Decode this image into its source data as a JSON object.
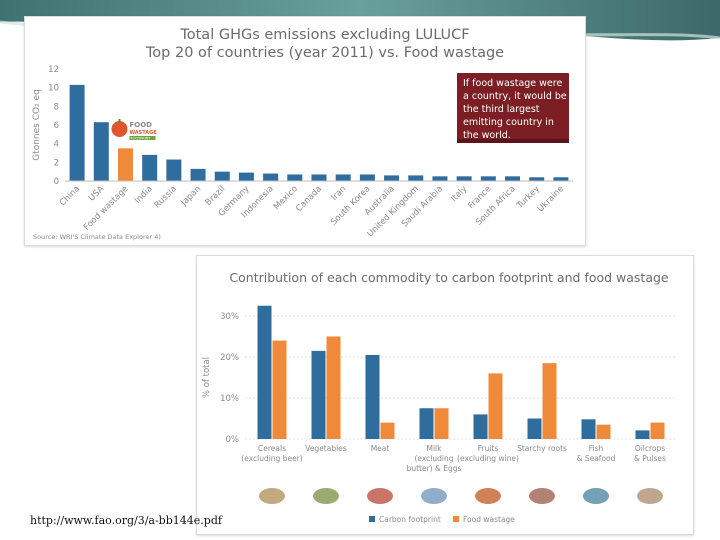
{
  "colors": {
    "blue": "#2f6d9e",
    "orange": "#ef8a3a",
    "callout_bg": "#7b1f25",
    "title_gray": "#6b6b6b",
    "axis_gray": "#8a8a8a",
    "grid_gray": "#e1e1e1"
  },
  "footer": {
    "url": "http://www.fao.org/3/a-bb144e.pdf"
  },
  "chart_data": [
    {
      "type": "bar",
      "title": "Total GHGs emissions excluding LULUCF",
      "subtitle": "Top 20 of countries (year 2011) vs. Food wastage",
      "ylabel": "Gtonnes CO₂ eq",
      "xlabel": "",
      "ylim": [
        0,
        12
      ],
      "yticks": [
        0,
        2,
        4,
        6,
        8,
        10,
        12
      ],
      "grid": false,
      "categories": [
        "China",
        "USA",
        "Food wastage",
        "India",
        "Russia",
        "Japan",
        "Brazil",
        "Germany",
        "Indonesia",
        "Mexico",
        "Canada",
        "Iran",
        "South Korea",
        "Australia",
        "United Kingdom",
        "Saudi Arabia",
        "Italy",
        "France",
        "South Africa",
        "Turkey",
        "Ukraine"
      ],
      "values": [
        10.3,
        6.3,
        3.5,
        2.8,
        2.3,
        1.3,
        1.0,
        0.9,
        0.8,
        0.7,
        0.7,
        0.7,
        0.7,
        0.6,
        0.6,
        0.5,
        0.5,
        0.5,
        0.5,
        0.4,
        0.4
      ],
      "highlight_index": 2,
      "highlight_label": "FOOD WASTAGE FOOTPRINT",
      "callout": "If food wastage were a country, it would be the third largest emitting country in the world.",
      "source": "Source: WRI'S Climate Data Explorer 4)"
    },
    {
      "type": "bar",
      "title": "Contribution of each commodity to carbon footprint and food wastage",
      "ylabel": "% of total",
      "xlabel": "",
      "ylim": [
        0,
        30
      ],
      "yticks": [
        0,
        10,
        20,
        30
      ],
      "yticklabels": [
        "0%",
        "10%",
        "20%",
        "30%"
      ],
      "grid": true,
      "categories": [
        [
          "Cereals",
          "(excluding beer)"
        ],
        [
          "Vegetables"
        ],
        [
          "Meat"
        ],
        [
          "Milk",
          "(excluding",
          "butter) & Eggs"
        ],
        [
          "Fruits",
          "(excluding wine)"
        ],
        [
          "Starchy roots"
        ],
        [
          "Fish",
          "& Seafood"
        ],
        [
          "Oilcrops",
          "& Pulses"
        ]
      ],
      "series": [
        {
          "name": "Carbon footprint",
          "values": [
            32.5,
            21.5,
            20.5,
            7.5,
            6.0,
            5.0,
            4.8,
            2.1
          ]
        },
        {
          "name": "Food wastage",
          "values": [
            24.0,
            25.0,
            4.0,
            7.5,
            16.0,
            18.5,
            3.5,
            4.0
          ]
        }
      ],
      "legend_position": "bottom-center",
      "icons": [
        "grains-icon",
        "vegetable-bag-icon",
        "meat-icon",
        "milk-bottles-icon",
        "fruit-crate-icon",
        "roots-icon",
        "fish-icon",
        "oilcrop-sack-icon"
      ]
    }
  ]
}
